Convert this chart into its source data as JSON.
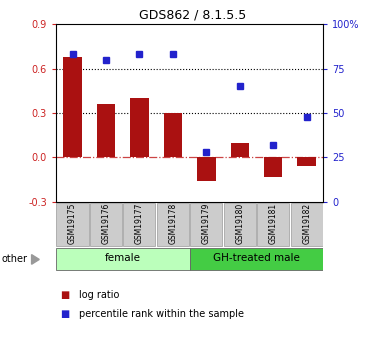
{
  "title": "GDS862 / 8.1.5.5",
  "samples": [
    "GSM19175",
    "GSM19176",
    "GSM19177",
    "GSM19178",
    "GSM19179",
    "GSM19180",
    "GSM19181",
    "GSM19182"
  ],
  "log_ratio": [
    0.68,
    0.36,
    0.4,
    0.3,
    -0.16,
    0.1,
    -0.13,
    -0.055
  ],
  "percentile_rank": [
    83,
    80,
    83,
    83,
    28,
    65,
    32,
    48
  ],
  "groups": [
    {
      "label": "female",
      "start": 0,
      "end": 4,
      "color": "#bbffbb"
    },
    {
      "label": "GH-treated male",
      "start": 4,
      "end": 8,
      "color": "#44cc44"
    }
  ],
  "left_ylim": [
    -0.3,
    0.9
  ],
  "right_ylim": [
    0,
    100
  ],
  "left_yticks": [
    -0.3,
    0.0,
    0.3,
    0.6,
    0.9
  ],
  "right_yticks": [
    0,
    25,
    50,
    75,
    100
  ],
  "right_yticklabels": [
    "0",
    "25",
    "50",
    "75",
    "100%"
  ],
  "hlines": [
    0.3,
    0.6
  ],
  "bar_color": "#aa1111",
  "dot_color": "#2222cc",
  "zero_line_color": "#cc4444",
  "grid_color": "black",
  "other_label": "other",
  "legend_items": [
    {
      "label": "log ratio",
      "color": "#aa1111"
    },
    {
      "label": "percentile rank within the sample",
      "color": "#2222cc"
    }
  ]
}
